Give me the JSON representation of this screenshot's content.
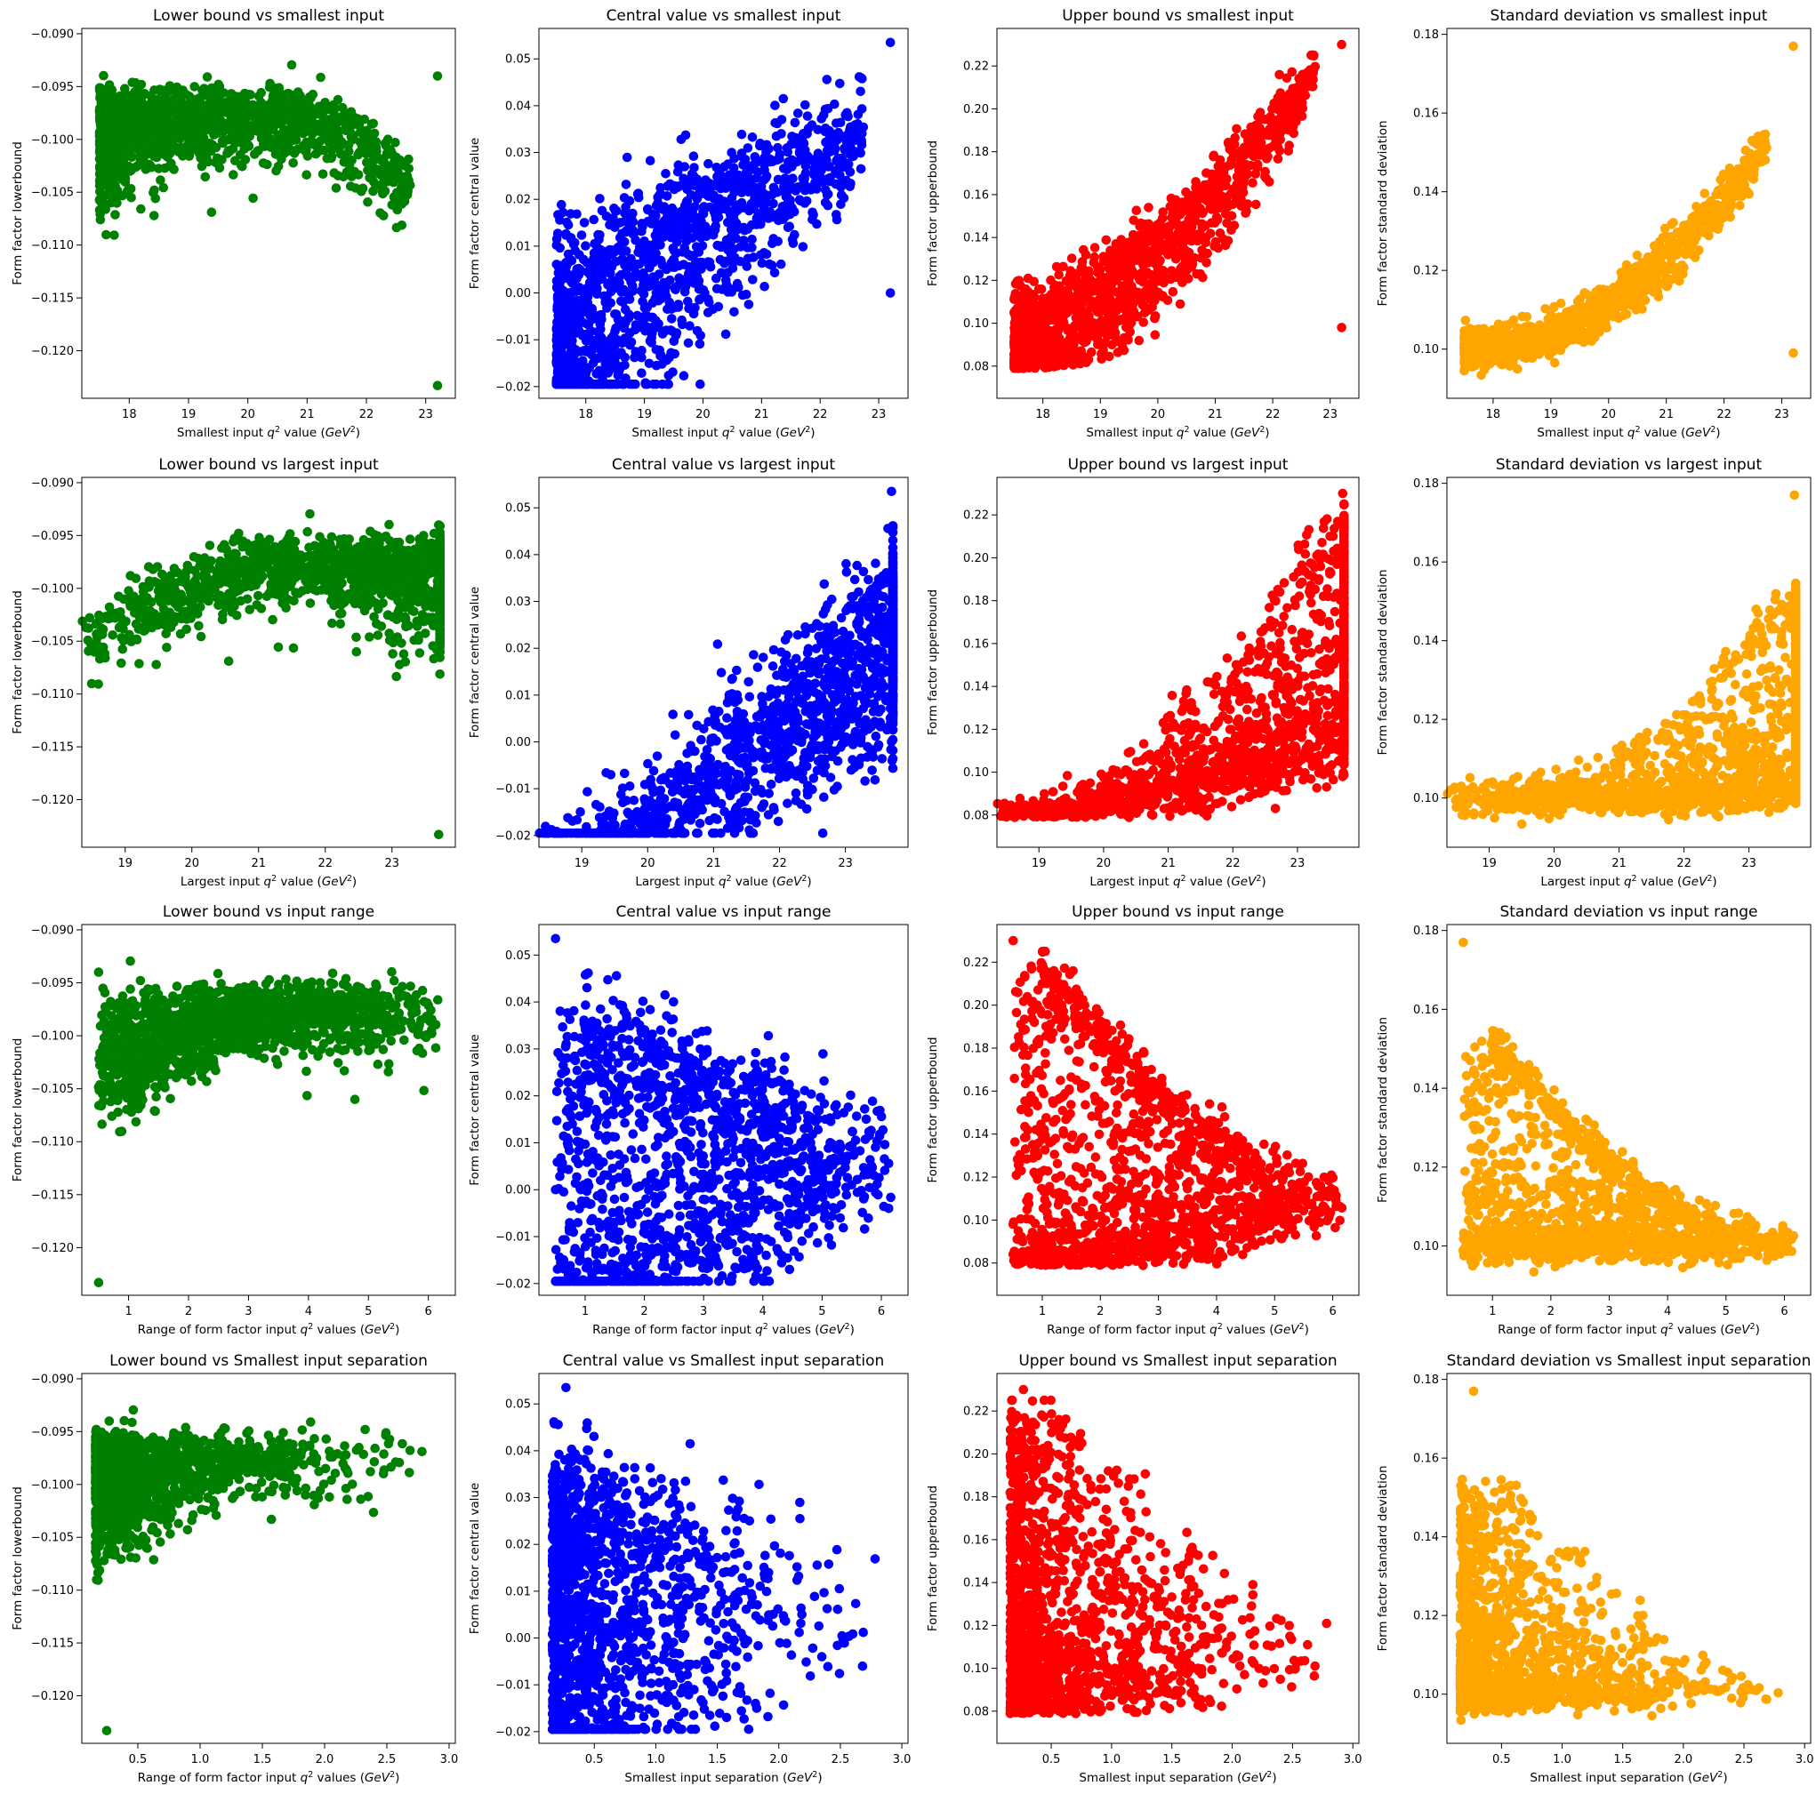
{
  "colors": {
    "lower": "#008000",
    "central": "#0000ff",
    "upper": "#ff0000",
    "std": "#ffa500"
  },
  "ylabels": {
    "lower": "Form factor lowerbound",
    "central": "Form factor central value",
    "upper": "Form factor upperbound",
    "std": "Form factor standard deviation"
  },
  "rows": [
    {
      "key": "smallest",
      "xlabel": "Smallest input q² value (GeV²)",
      "xlabel_parts": [
        "Smallest input ",
        "q",
        "2",
        " value (",
        "GeV",
        "2",
        ")"
      ],
      "xlim": [
        17.2,
        23.5
      ],
      "xticks": [
        18,
        19,
        20,
        21,
        22,
        23
      ],
      "xtick_labels": [
        "18",
        "19",
        "20",
        "21",
        "22",
        "23"
      ],
      "titles": [
        "Lower bound vs smallest input",
        "Central value vs smallest input",
        "Upper bound vs smallest input",
        "Standard deviation vs smallest input"
      ]
    },
    {
      "key": "largest",
      "xlabel": "Largest input q² value (GeV²)",
      "xlabel_parts": [
        "Largest input ",
        "q",
        "2",
        " value (",
        "GeV",
        "2",
        ")"
      ],
      "xlim": [
        18.35,
        23.95
      ],
      "xticks": [
        19,
        20,
        21,
        22,
        23
      ],
      "xtick_labels": [
        "19",
        "20",
        "21",
        "22",
        "23"
      ],
      "titles": [
        "Lower bound vs largest input",
        "Central value vs largest input",
        "Upper bound vs largest input",
        "Standard deviation vs largest input"
      ]
    },
    {
      "key": "range",
      "xlabel": "Range of form factor input q² values (GeV²)",
      "xlabel_parts": [
        "Range of form factor input ",
        "q",
        "2",
        " values (",
        "GeV",
        "2",
        ")"
      ],
      "xlim": [
        0.22,
        6.45
      ],
      "xticks": [
        1,
        2,
        3,
        4,
        5,
        6
      ],
      "xtick_labels": [
        "1",
        "2",
        "3",
        "4",
        "5",
        "6"
      ],
      "titles": [
        "Lower bound vs input range",
        "Central value vs input range",
        "Upper bound vs input range",
        "Standard deviation vs input range"
      ]
    },
    {
      "key": "separation",
      "xlabel": "Smallest input separation (GeV²)",
      "xlabel_first": "Range of form factor input q² values (GeV²)",
      "xlabel_parts": [
        "Smallest input separation (",
        "GeV",
        "2",
        ")"
      ],
      "xlabel_first_parts": [
        "Range of form factor input ",
        "q",
        "2",
        " values (",
        "GeV",
        "2",
        ")"
      ],
      "xlim": [
        0.05,
        3.05
      ],
      "xticks": [
        0.5,
        1.0,
        1.5,
        2.0,
        2.5,
        3.0
      ],
      "xtick_labels": [
        "0.5",
        "1.0",
        "1.5",
        "2.0",
        "2.5",
        "3.0"
      ],
      "titles": [
        "Lower bound vs Smallest input separation",
        "Central value vs Smallest input separation",
        "Upper bound vs Smallest input separation",
        "Standard deviation vs Smallest input separation"
      ]
    }
  ],
  "chart_data": {
    "type": "scatter",
    "layout": "4x4 grid of scatter subplots",
    "n_points_per_panel_approx": 1500,
    "series": {
      "lower": {
        "ylim": [
          -0.1245,
          -0.0895
        ],
        "yticks": [
          -0.12,
          -0.115,
          -0.11,
          -0.105,
          -0.1,
          -0.095,
          -0.09
        ],
        "ytick_labels": [
          "−0.120",
          "−0.115",
          "−0.110",
          "−0.105",
          "−0.100",
          "−0.095",
          "−0.090"
        ]
      },
      "central": {
        "ylim": [
          -0.0225,
          0.0565
        ],
        "yticks": [
          -0.02,
          -0.01,
          0.0,
          0.01,
          0.02,
          0.03,
          0.04,
          0.05
        ],
        "ytick_labels": [
          "−0.02",
          "−0.01",
          "0.00",
          "0.01",
          "0.02",
          "0.03",
          "0.04",
          "0.05"
        ]
      },
      "upper": {
        "ylim": [
          0.065,
          0.2375
        ],
        "yticks": [
          0.08,
          0.1,
          0.12,
          0.14,
          0.16,
          0.18,
          0.2,
          0.22
        ],
        "ytick_labels": [
          "0.08",
          "0.10",
          "0.12",
          "0.14",
          "0.16",
          "0.18",
          "0.20",
          "0.22"
        ]
      },
      "std": {
        "ylim": [
          0.0875,
          0.1815
        ],
        "yticks": [
          0.1,
          0.12,
          0.14,
          0.16,
          0.18
        ],
        "ytick_labels": [
          "0.10",
          "0.12",
          "0.14",
          "0.16",
          "0.18"
        ]
      }
    },
    "extremes": {
      "max_central_point": {
        "smallest": 23.2,
        "largest": 23.7,
        "range": 0.5,
        "separation": 0.27,
        "lower": -0.094,
        "central": 0.0535,
        "upper": 0.23,
        "std": 0.177
      },
      "min_lower_point": {
        "smallest": 23.2,
        "largest": 23.7,
        "range": 0.5,
        "separation": 0.25,
        "lower": -0.1233,
        "central": 0.0,
        "upper": 0.098,
        "std": 0.099
      }
    }
  }
}
